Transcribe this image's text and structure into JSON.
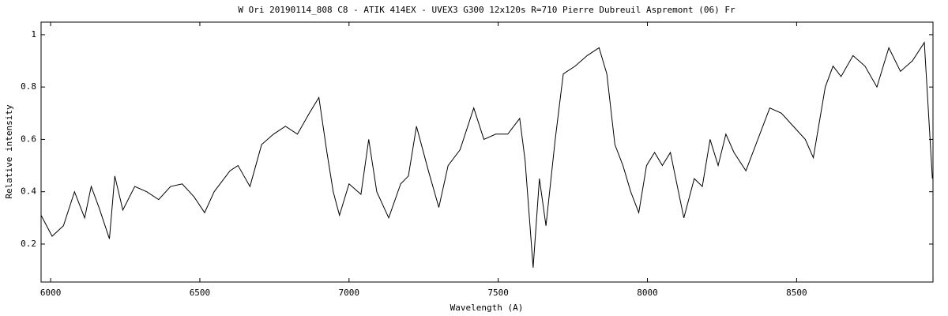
{
  "chart_data": {
    "type": "line",
    "title": "W Ori  20190114_808    C8 - ATIK 414EX - UVEX3 G300 12x120s  R=710  Pierre Dubreuil  Aspremont (06) Fr",
    "x_label": "Wavelength (A)",
    "y_label": "Relative intensity",
    "x": [
      5968,
      6005,
      6043,
      6080,
      6114,
      6136,
      6162,
      6197,
      6215,
      6242,
      6282,
      6322,
      6362,
      6402,
      6441,
      6481,
      6516,
      6548,
      6601,
      6628,
      6668,
      6707,
      6747,
      6787,
      6827,
      6867,
      6899,
      6926,
      6947,
      6968,
      7000,
      7040,
      7066,
      7093,
      7133,
      7173,
      7199,
      7226,
      7266,
      7301,
      7332,
      7372,
      7418,
      7452,
      7492,
      7532,
      7572,
      7590,
      7617,
      7638,
      7660,
      7691,
      7718,
      7758,
      7798,
      7838,
      7864,
      7891,
      7918,
      7944,
      7971,
      7997,
      8024,
      8050,
      8077,
      8104,
      8122,
      8157,
      8184,
      8210,
      8237,
      8263,
      8290,
      8330,
      8370,
      8410,
      8449,
      8489,
      8529,
      8556,
      8596,
      8622,
      8649,
      8689,
      8729,
      8769,
      8809,
      8848,
      8888,
      8928,
      8955
    ],
    "values": [
      0.31,
      0.23,
      0.27,
      0.4,
      0.3,
      0.42,
      0.34,
      0.22,
      0.46,
      0.33,
      0.42,
      0.4,
      0.37,
      0.42,
      0.43,
      0.38,
      0.32,
      0.4,
      0.48,
      0.5,
      0.42,
      0.58,
      0.62,
      0.65,
      0.62,
      0.7,
      0.76,
      0.55,
      0.4,
      0.31,
      0.43,
      0.39,
      0.6,
      0.4,
      0.3,
      0.43,
      0.46,
      0.65,
      0.48,
      0.34,
      0.5,
      0.56,
      0.72,
      0.6,
      0.62,
      0.62,
      0.68,
      0.52,
      0.11,
      0.45,
      0.27,
      0.6,
      0.85,
      0.88,
      0.92,
      0.95,
      0.85,
      0.58,
      0.5,
      0.4,
      0.32,
      0.5,
      0.55,
      0.5,
      0.55,
      0.4,
      0.3,
      0.45,
      0.42,
      0.6,
      0.5,
      0.62,
      0.55,
      0.48,
      0.6,
      0.72,
      0.7,
      0.65,
      0.6,
      0.53,
      0.8,
      0.88,
      0.84,
      0.92,
      0.88,
      0.8,
      0.95,
      0.86,
      0.9,
      0.97,
      0.45
    ],
    "color": "#000000",
    "xlim": [
      5968,
      8957
    ],
    "xticks": [
      6000,
      6500,
      7000,
      7500,
      8000,
      8500
    ],
    "ylim": [
      0.055,
      1.048
    ],
    "yticks": [
      0.2,
      0.4,
      0.6,
      0.8,
      1
    ]
  }
}
